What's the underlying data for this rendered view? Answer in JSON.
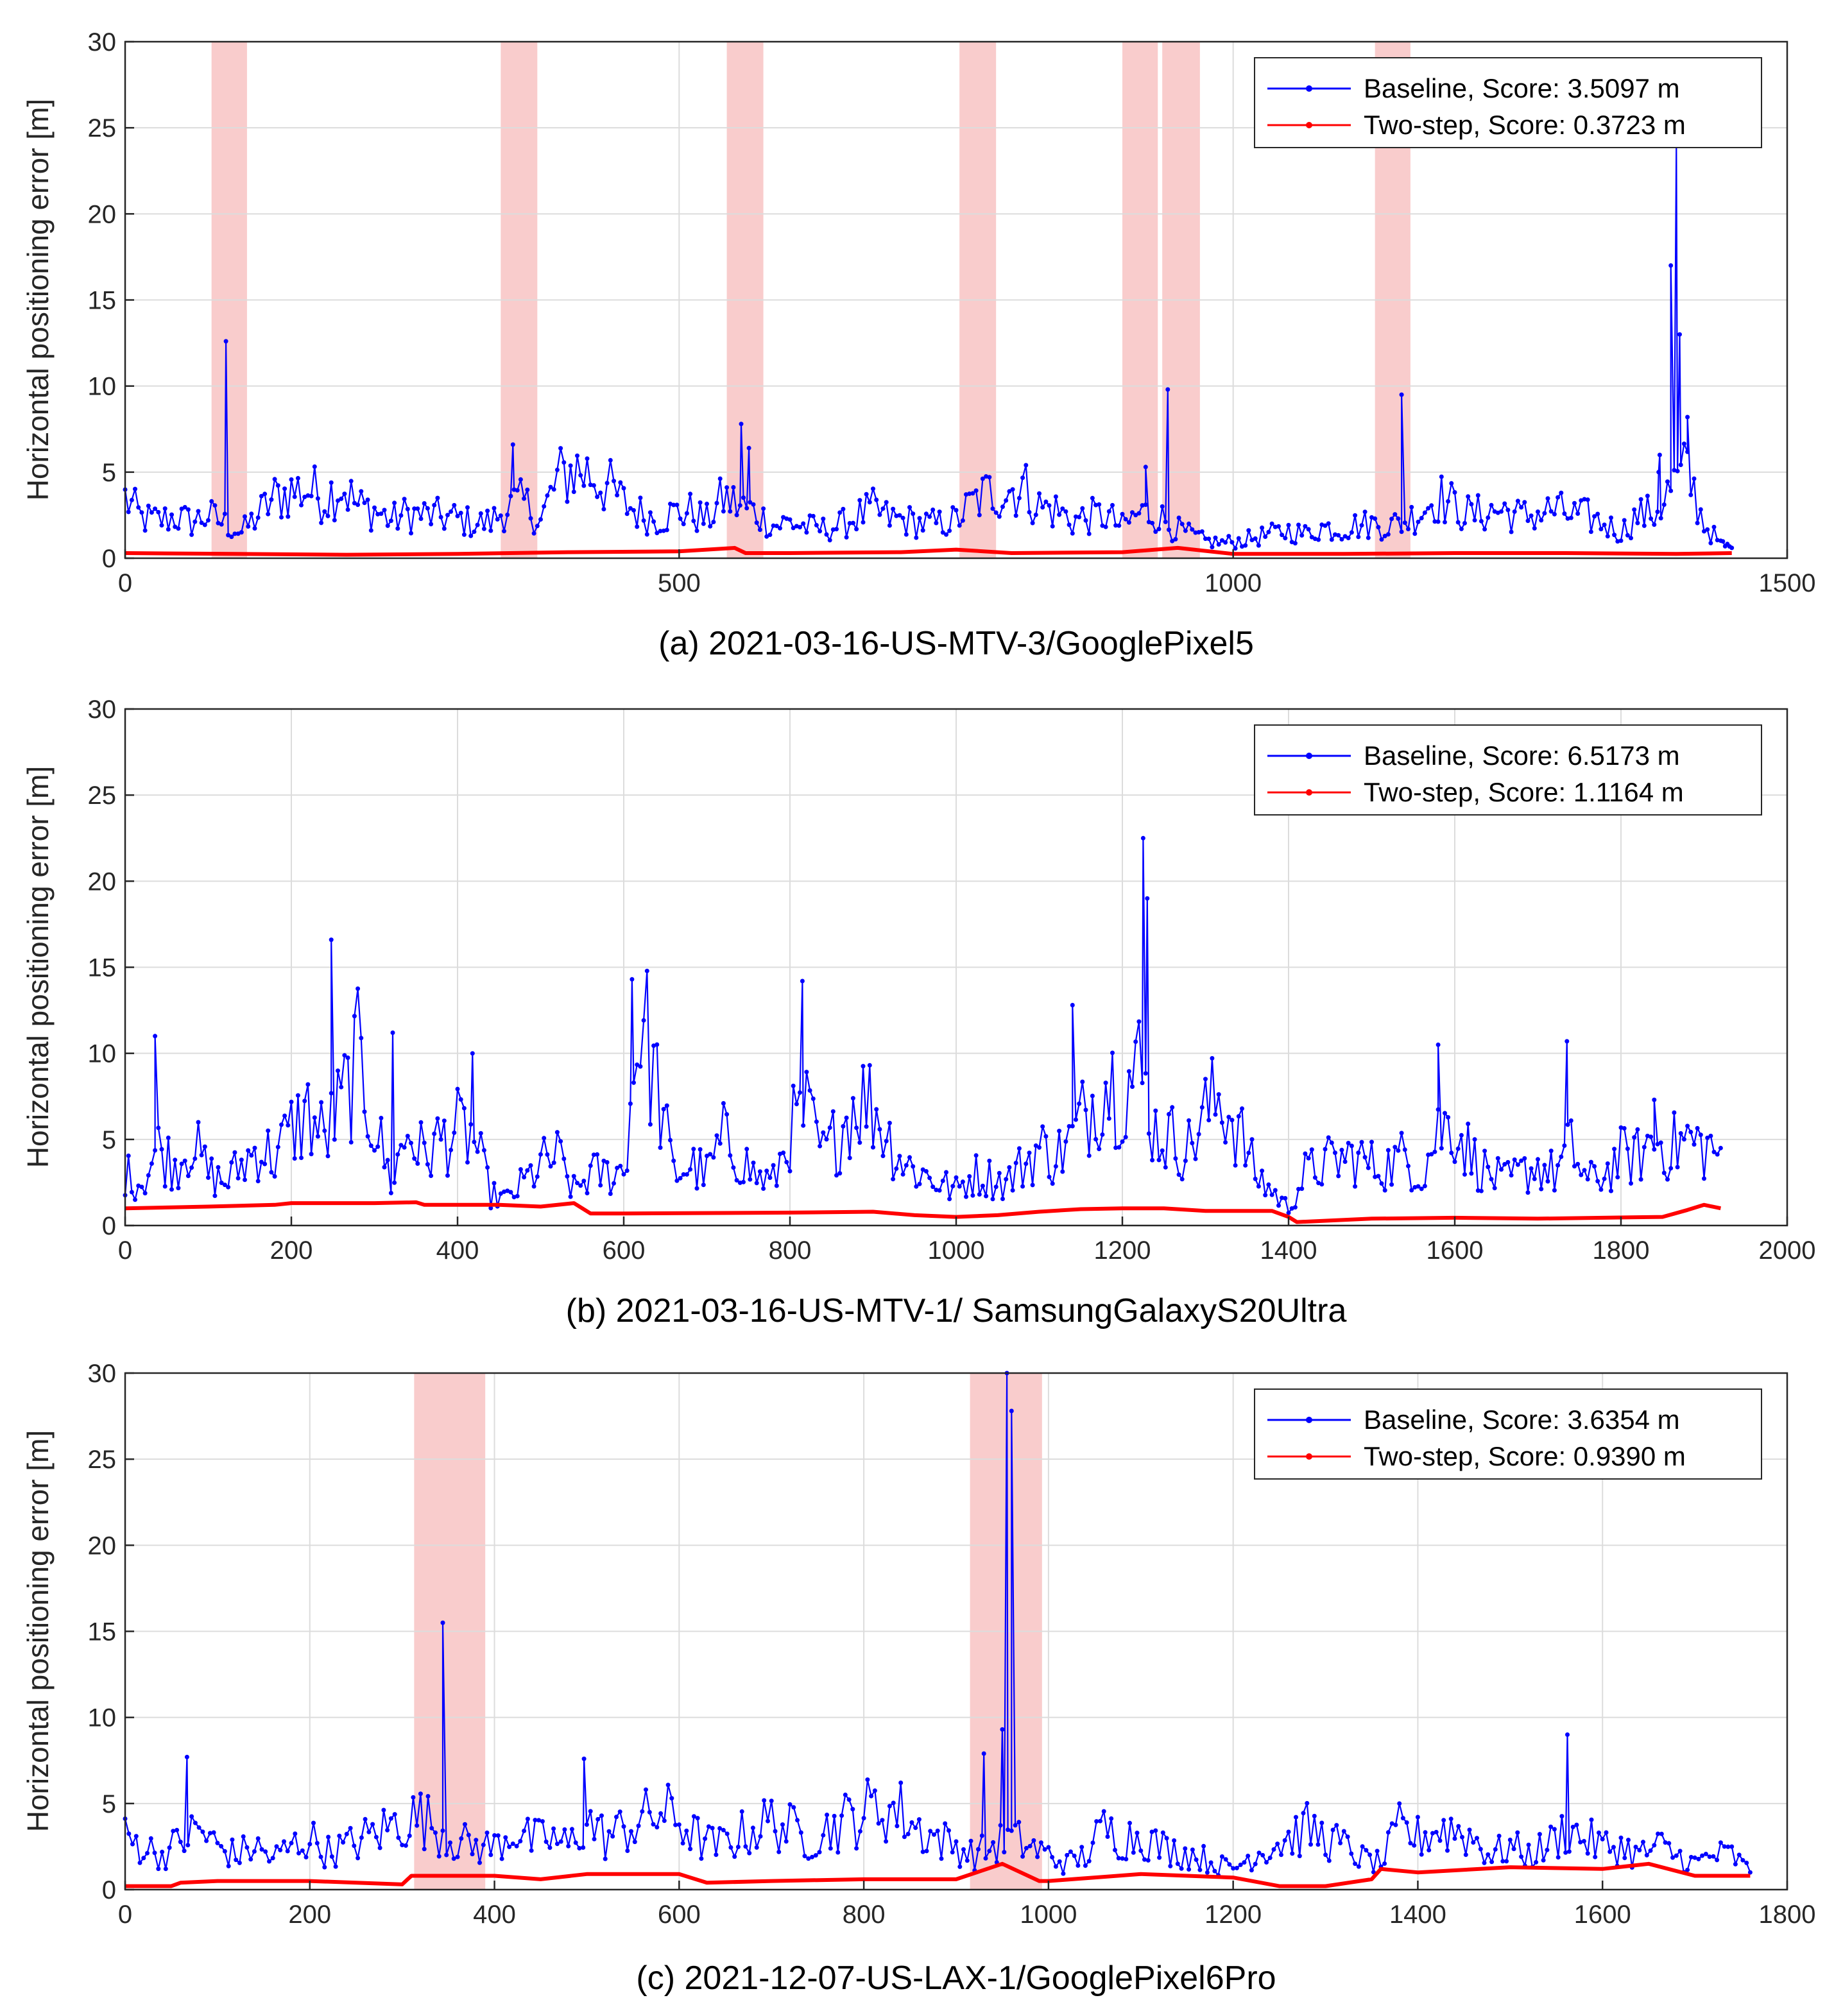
{
  "chart_data": [
    {
      "type": "line",
      "caption": "(a) 2021-03-16-US-MTV-3/GooglePixel5",
      "ylabel": "Horizontal positioning error [m]",
      "xlabel": "",
      "xlim": [
        0,
        1500
      ],
      "ylim": [
        0,
        30
      ],
      "xticks": [
        0,
        500,
        1000,
        1500
      ],
      "yticks": [
        0,
        5,
        10,
        15,
        20,
        25,
        30
      ],
      "legend_position": "top-right",
      "highlight_ranges": [
        [
          78,
          110
        ],
        [
          339,
          372
        ],
        [
          543,
          576
        ],
        [
          753,
          786
        ],
        [
          900,
          932
        ],
        [
          936,
          970
        ],
        [
          1128,
          1160
        ]
      ],
      "series": [
        {
          "name": "Baseline, Score: 3.5097 m",
          "color": "#0000ff",
          "spikes": [
            [
              91,
              12.6
            ],
            [
              350,
              6.6
            ],
            [
              556,
              7.8
            ],
            [
              563,
              6.4
            ],
            [
              921,
              5.3
            ],
            [
              941,
              9.8
            ],
            [
              1152,
              9.5
            ],
            [
              1395,
              17.0
            ],
            [
              1400,
              24.0
            ],
            [
              1403,
              13.0
            ],
            [
              1410,
              8.2
            ],
            [
              1385,
              6.0
            ],
            [
              1384,
              5.0
            ]
          ],
          "x": [
            0,
            15,
            30,
            45,
            60,
            75,
            90,
            105,
            120,
            135,
            150,
            165,
            180,
            195,
            210,
            225,
            240,
            255,
            270,
            285,
            300,
            315,
            330,
            345,
            360,
            375,
            390,
            405,
            420,
            435,
            450,
            465,
            480,
            495,
            510,
            525,
            540,
            555,
            570,
            585,
            600,
            615,
            630,
            645,
            660,
            675,
            690,
            705,
            720,
            735,
            750,
            765,
            780,
            795,
            810,
            825,
            840,
            855,
            870,
            885,
            900,
            915,
            930,
            945,
            960,
            975,
            990,
            1005,
            1020,
            1035,
            1050,
            1065,
            1080,
            1095,
            1110,
            1125,
            1140,
            1155,
            1170,
            1185,
            1200,
            1215,
            1230,
            1245,
            1260,
            1275,
            1290,
            1305,
            1320,
            1335,
            1350,
            1365,
            1380,
            1395,
            1410,
            1425,
            1440,
            1450
          ],
          "y": [
            3.5,
            2.3,
            2.2,
            2.4,
            2.1,
            2.5,
            2.0,
            1.5,
            2.5,
            3.5,
            3.9,
            4.0,
            3.5,
            4.3,
            3.0,
            2.8,
            2.2,
            2.6,
            2.5,
            2.4,
            2.3,
            2.0,
            2.1,
            3.0,
            3.2,
            2.2,
            4.5,
            5.2,
            4.9,
            4.2,
            3.2,
            2.6,
            2.3,
            2.6,
            2.7,
            2.2,
            3.5,
            3.0,
            2.6,
            1.9,
            2.1,
            1.8,
            1.7,
            1.9,
            2.4,
            2.8,
            2.3,
            2.2,
            2.0,
            2.0,
            2.2,
            3.2,
            3.8,
            3.9,
            4.2,
            3.0,
            2.8,
            2.2,
            2.4,
            2.5,
            1.8,
            2.6,
            2.6,
            1.8,
            1.4,
            1.0,
            0.9,
            1.0,
            1.2,
            1.4,
            1.6,
            1.4,
            1.8,
            1.7,
            1.9,
            2.0,
            1.9,
            2.1,
            2.8,
            3.6,
            3.0,
            2.5,
            2.7,
            2.8,
            2.4,
            2.6,
            2.8,
            2.5,
            2.4,
            2.0,
            1.5,
            2.5,
            2.6,
            4.0,
            5.0,
            2.0,
            0.8,
            0.6
          ]
        },
        {
          "name": "Two-step, Score: 0.3723 m",
          "color": "#ff0000",
          "x": [
            0,
            100,
            200,
            300,
            400,
            500,
            550,
            560,
            600,
            700,
            750,
            800,
            900,
            950,
            1000,
            1100,
            1200,
            1300,
            1400,
            1450
          ],
          "y": [
            0.3,
            0.25,
            0.2,
            0.25,
            0.35,
            0.4,
            0.6,
            0.3,
            0.3,
            0.35,
            0.5,
            0.3,
            0.35,
            0.6,
            0.25,
            0.25,
            0.3,
            0.3,
            0.25,
            0.3
          ]
        }
      ]
    },
    {
      "type": "line",
      "caption": "(b) 2021-03-16-US-MTV-1/ SamsungGalaxyS20Ultra",
      "ylabel": "Horizontal positioning error [m]",
      "xlabel": "",
      "xlim": [
        0,
        2000
      ],
      "ylim": [
        0,
        30
      ],
      "xticks": [
        0,
        200,
        400,
        600,
        800,
        1000,
        1200,
        1400,
        1600,
        1800,
        2000
      ],
      "yticks": [
        0,
        5,
        10,
        15,
        20,
        25,
        30
      ],
      "legend_position": "top-right",
      "highlight_ranges": [],
      "series": [
        {
          "name": "Baseline, Score: 6.5173 m",
          "color": "#0000ff",
          "spikes": [
            [
              36,
              11.0
            ],
            [
              248,
              16.6
            ],
            [
              322,
              11.2
            ],
            [
              418,
              10.0
            ],
            [
              610,
              14.3
            ],
            [
              815,
              14.2
            ],
            [
              1140,
              12.8
            ],
            [
              1225,
              22.5
            ],
            [
              1230,
              19.0
            ],
            [
              1580,
              10.5
            ],
            [
              1735,
              10.7
            ],
            [
              1840,
              7.3
            ]
          ],
          "x": [
            0,
            20,
            40,
            60,
            80,
            100,
            120,
            140,
            160,
            180,
            200,
            220,
            240,
            260,
            280,
            300,
            320,
            340,
            360,
            380,
            400,
            420,
            440,
            460,
            480,
            500,
            520,
            540,
            560,
            580,
            600,
            620,
            640,
            660,
            680,
            700,
            720,
            740,
            760,
            780,
            800,
            820,
            840,
            860,
            880,
            900,
            920,
            940,
            960,
            980,
            1000,
            1020,
            1040,
            1060,
            1080,
            1100,
            1120,
            1140,
            1160,
            1180,
            1200,
            1220,
            1240,
            1260,
            1280,
            1300,
            1320,
            1340,
            1360,
            1380,
            1400,
            1420,
            1440,
            1460,
            1480,
            1500,
            1520,
            1540,
            1560,
            1580,
            1600,
            1620,
            1640,
            1660,
            1680,
            1700,
            1720,
            1740,
            1760,
            1780,
            1800,
            1820,
            1840,
            1860,
            1880,
            1900,
            1920
          ],
          "y": [
            3.0,
            2.5,
            4.5,
            3.5,
            5.0,
            3.0,
            2.5,
            3.5,
            4.5,
            4.0,
            5.5,
            6.5,
            5.0,
            7.0,
            9.5,
            6.0,
            2.5,
            5.5,
            4.0,
            5.0,
            5.5,
            5.0,
            1.8,
            1.5,
            2.5,
            3.5,
            4.0,
            2.0,
            3.0,
            3.0,
            3.2,
            12.5,
            8.0,
            3.0,
            3.5,
            3.0,
            5.0,
            4.0,
            2.8,
            2.5,
            5.5,
            6.5,
            4.0,
            5.5,
            7.5,
            7.0,
            5.0,
            3.5,
            3.0,
            2.5,
            2.0,
            3.0,
            2.8,
            2.5,
            3.5,
            4.5,
            4.0,
            5.0,
            7.0,
            8.5,
            8.0,
            9.0,
            5.5,
            5.0,
            4.5,
            6.5,
            7.5,
            5.5,
            3.0,
            2.0,
            1.0,
            3.0,
            3.5,
            3.8,
            4.0,
            3.5,
            3.5,
            4.0,
            3.0,
            5.5,
            6.0,
            4.0,
            3.0,
            2.5,
            3.0,
            3.5,
            3.0,
            4.5,
            2.5,
            3.0,
            4.0,
            4.0,
            5.0,
            4.5,
            5.0,
            4.5,
            4.5
          ]
        },
        {
          "name": "Two-step, Score: 1.1164 m",
          "color": "#ff0000",
          "x": [
            0,
            100,
            180,
            200,
            300,
            350,
            360,
            450,
            500,
            540,
            560,
            600,
            800,
            900,
            950,
            1000,
            1050,
            1100,
            1150,
            1200,
            1250,
            1300,
            1380,
            1400,
            1410,
            1500,
            1600,
            1700,
            1850,
            1880,
            1900,
            1920
          ],
          "y": [
            1.0,
            1.1,
            1.2,
            1.3,
            1.3,
            1.35,
            1.2,
            1.2,
            1.1,
            1.3,
            0.7,
            0.7,
            0.75,
            0.8,
            0.6,
            0.5,
            0.6,
            0.8,
            0.95,
            1.0,
            1.0,
            0.85,
            0.85,
            0.5,
            0.2,
            0.4,
            0.45,
            0.4,
            0.5,
            0.9,
            1.2,
            1.0
          ]
        }
      ]
    },
    {
      "type": "line",
      "caption": "(c) 2021-12-07-US-LAX-1/GooglePixel6Pro",
      "ylabel": "Horizontal positioning error [m]",
      "xlabel": "",
      "xlim": [
        0,
        1800
      ],
      "ylim": [
        0,
        30
      ],
      "xticks": [
        0,
        200,
        400,
        600,
        800,
        1000,
        1200,
        1400,
        1600,
        1800
      ],
      "yticks": [
        0,
        5,
        10,
        15,
        20,
        25,
        30
      ],
      "legend_position": "top-right",
      "highlight_ranges": [
        [
          313,
          390
        ],
        [
          915,
          993
        ]
      ],
      "series": [
        {
          "name": "Baseline, Score: 3.6354 m",
          "color": "#0000ff",
          "spikes": [
            [
              67,
              7.7
            ],
            [
              344,
              15.5
            ],
            [
              497,
              7.6
            ],
            [
              930,
              7.9
            ],
            [
              950,
              9.3
            ],
            [
              955,
              30.0
            ],
            [
              960,
              27.8
            ],
            [
              1562,
              9.0
            ]
          ],
          "x": [
            0,
            20,
            40,
            60,
            80,
            100,
            120,
            140,
            160,
            180,
            200,
            220,
            240,
            260,
            280,
            300,
            320,
            340,
            360,
            380,
            400,
            420,
            440,
            460,
            480,
            500,
            520,
            540,
            560,
            580,
            600,
            620,
            640,
            660,
            680,
            700,
            720,
            740,
            760,
            780,
            800,
            820,
            840,
            860,
            880,
            900,
            920,
            940,
            960,
            980,
            1000,
            1020,
            1040,
            1060,
            1080,
            1100,
            1120,
            1140,
            1160,
            1180,
            1200,
            1220,
            1240,
            1260,
            1280,
            1300,
            1320,
            1340,
            1360,
            1380,
            1400,
            1420,
            1440,
            1460,
            1480,
            1500,
            1520,
            1540,
            1560,
            1580,
            1600,
            1620,
            1640,
            1660,
            1680,
            1700,
            1720,
            1740,
            1760
          ],
          "y": [
            3.0,
            2.5,
            2.0,
            2.8,
            3.5,
            2.5,
            2.0,
            2.5,
            1.8,
            2.5,
            3.0,
            2.2,
            2.5,
            3.0,
            3.5,
            4.0,
            4.2,
            3.5,
            2.8,
            2.5,
            2.5,
            3.5,
            2.8,
            3.0,
            2.5,
            4.0,
            3.0,
            3.5,
            4.0,
            4.5,
            4.0,
            3.0,
            2.5,
            3.0,
            3.5,
            4.0,
            3.5,
            3.0,
            3.5,
            4.0,
            4.5,
            4.8,
            4.5,
            3.5,
            3.0,
            2.5,
            2.0,
            2.5,
            3.0,
            2.5,
            2.0,
            1.5,
            2.0,
            3.5,
            3.0,
            3.2,
            2.5,
            2.2,
            2.0,
            1.5,
            1.2,
            2.0,
            2.5,
            3.0,
            3.5,
            3.0,
            2.5,
            1.8,
            1.5,
            3.5,
            3.0,
            3.5,
            3.5,
            3.0,
            2.0,
            2.5,
            2.0,
            2.5,
            3.5,
            3.0,
            2.5,
            2.5,
            2.0,
            2.5,
            2.0,
            1.5,
            2.0,
            2.0,
            1.0
          ]
        },
        {
          "name": "Two-step, Score: 0.9390 m",
          "color": "#ff0000",
          "x": [
            0,
            50,
            60,
            100,
            200,
            300,
            310,
            400,
            450,
            500,
            600,
            630,
            700,
            800,
            900,
            950,
            990,
            1000,
            1100,
            1200,
            1250,
            1300,
            1350,
            1360,
            1400,
            1500,
            1600,
            1650,
            1700,
            1760
          ],
          "y": [
            0.2,
            0.2,
            0.4,
            0.5,
            0.5,
            0.3,
            0.8,
            0.8,
            0.6,
            0.9,
            0.9,
            0.4,
            0.5,
            0.6,
            0.6,
            1.5,
            0.5,
            0.5,
            0.9,
            0.7,
            0.2,
            0.2,
            0.6,
            1.2,
            1.0,
            1.3,
            1.2,
            1.5,
            0.8,
            0.8
          ]
        }
      ]
    }
  ]
}
